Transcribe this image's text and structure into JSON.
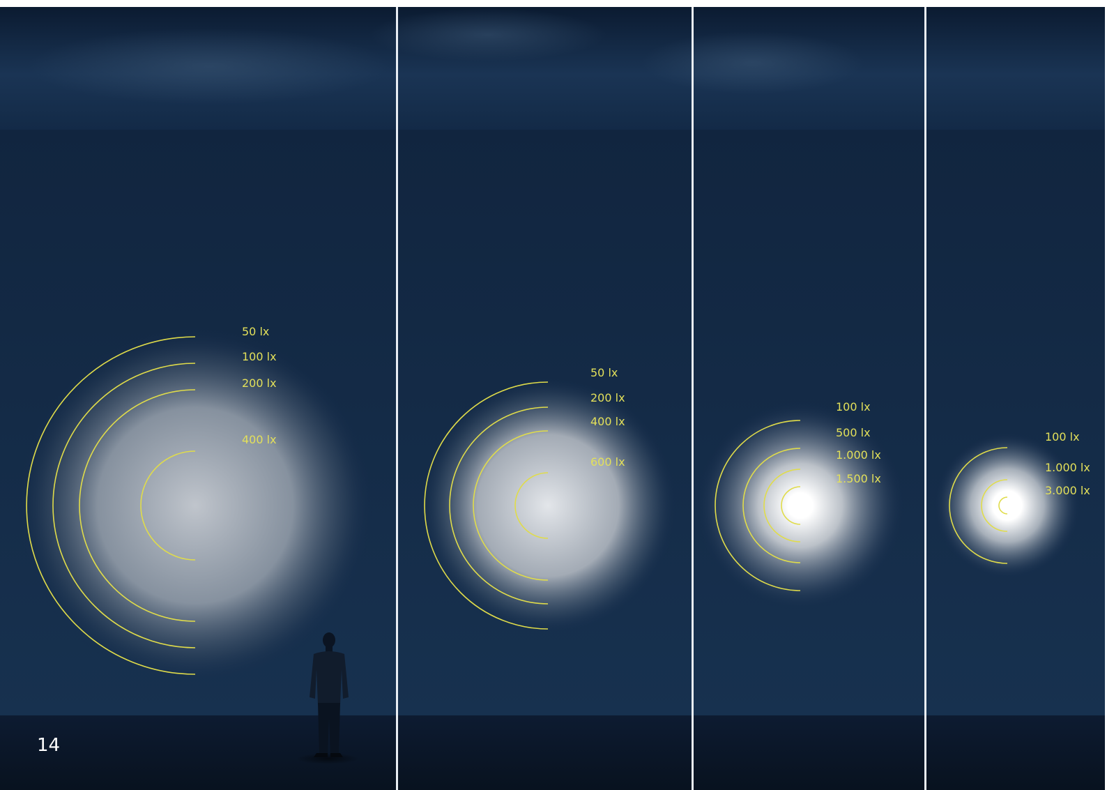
{
  "page": {
    "number": "14"
  },
  "colors": {
    "sky_top": "#0e2038",
    "wall": "#13284a",
    "ground": "#0a1629",
    "divider": "#e9eef4",
    "arc": "#e0dc4a",
    "label": "#e3e05a"
  },
  "panels": [
    {
      "labels": [
        "50 lx",
        "100 lx",
        "200 lx",
        "400 lx"
      ]
    },
    {
      "labels": [
        "50 lx",
        "200 lx",
        "400 lx",
        "600 lx"
      ]
    },
    {
      "labels": [
        "100 lx",
        "500 lx",
        "1.000 lx",
        "1.500 lx"
      ]
    },
    {
      "labels": [
        "100 lx",
        "1.000 lx",
        "3.000 lx"
      ]
    }
  ]
}
